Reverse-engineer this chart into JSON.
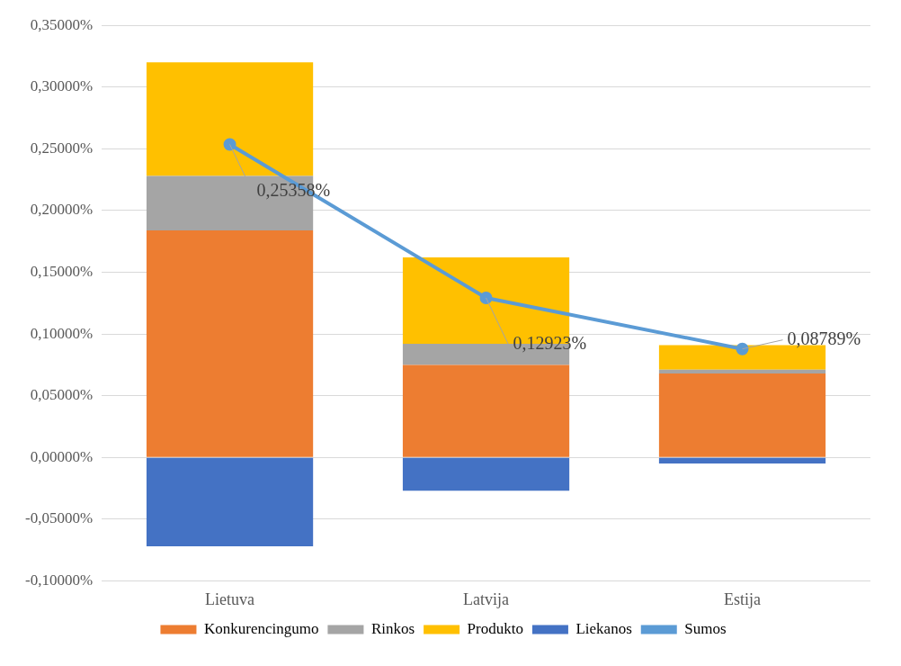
{
  "chart_data": {
    "type": "bar",
    "stacked": true,
    "categories": [
      "Lietuva",
      "Latvija",
      "Estija"
    ],
    "series": [
      {
        "name": "Konkurencingumo",
        "color": "#ed7d31",
        "values": [
          0.184,
          0.075,
          0.068
        ]
      },
      {
        "name": "Rinkos",
        "color": "#a5a5a5",
        "values": [
          0.044,
          0.017,
          0.003
        ]
      },
      {
        "name": "Produkto",
        "color": "#ffc000",
        "values": [
          0.092,
          0.07,
          0.02
        ]
      },
      {
        "name": "Liekanos",
        "color": "#4472c4",
        "values": [
          -0.072,
          -0.027,
          -0.005
        ]
      },
      {
        "name": "Sumos",
        "type": "line",
        "color": "#5b9bd5",
        "marker": "circle",
        "values": [
          0.25358,
          0.12923,
          0.08789
        ],
        "value_labels": [
          "0,25358%",
          "0,12923%",
          "0,08789%"
        ]
      }
    ],
    "ylim": [
      -0.1,
      0.35
    ],
    "yticks": [
      {
        "value": -0.1,
        "label": "-0,10000%"
      },
      {
        "value": -0.05,
        "label": "-0,05000%"
      },
      {
        "value": 0,
        "label": "0,00000%"
      },
      {
        "value": 0.05,
        "label": "0,05000%"
      },
      {
        "value": 0.1,
        "label": "0,10000%"
      },
      {
        "value": 0.15,
        "label": "0,15000%"
      },
      {
        "value": 0.2,
        "label": "0,20000%"
      },
      {
        "value": 0.25,
        "label": "0,25000%"
      },
      {
        "value": 0.3,
        "label": "0,30000%"
      },
      {
        "value": 0.35,
        "label": "0,35000%"
      }
    ],
    "grid": "y",
    "legend": "bottom"
  }
}
